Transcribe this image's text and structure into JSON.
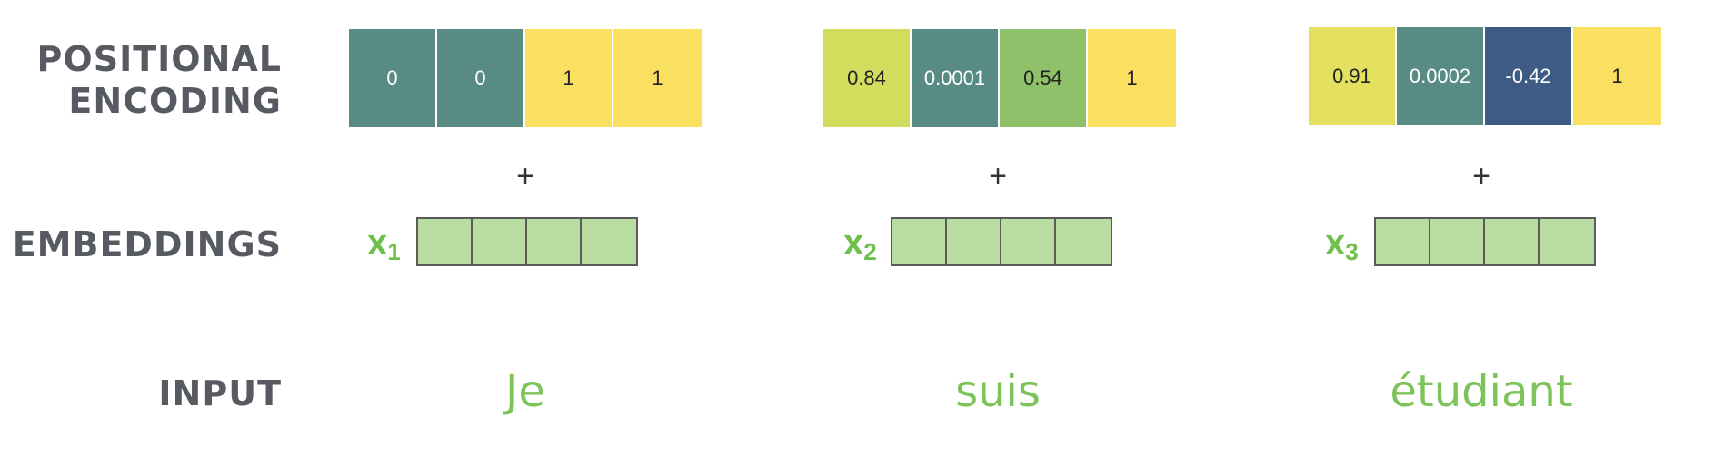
{
  "row_labels": {
    "positional_encoding": [
      "POSITIONAL",
      "ENCODING"
    ],
    "embeddings": "EMBEDDINGS",
    "input": "INPUT"
  },
  "plus_sign": "+",
  "columns": [
    {
      "pe": [
        {
          "value": "0",
          "color": "#578b84",
          "text_color": "#ffffff"
        },
        {
          "value": "0",
          "color": "#578b84",
          "text_color": "#ffffff"
        },
        {
          "value": "1",
          "color": "#f9e061",
          "text_color": "#222222"
        },
        {
          "value": "1",
          "color": "#f9e061",
          "text_color": "#222222"
        }
      ],
      "x_label": "x",
      "x_subscript": "1",
      "word": "Je"
    },
    {
      "pe": [
        {
          "value": "0.84",
          "color": "#d3dd5d",
          "text_color": "#222222"
        },
        {
          "value": "0.0001",
          "color": "#578b84",
          "text_color": "#ffffff"
        },
        {
          "value": "0.54",
          "color": "#8fc16a",
          "text_color": "#222222"
        },
        {
          "value": "1",
          "color": "#f9e061",
          "text_color": "#222222"
        }
      ],
      "x_label": "x",
      "x_subscript": "2",
      "word": "suis"
    },
    {
      "pe": [
        {
          "value": "0.91",
          "color": "#e2e05e",
          "text_color": "#222222"
        },
        {
          "value": "0.0002",
          "color": "#578b84",
          "text_color": "#ffffff"
        },
        {
          "value": "-0.42",
          "color": "#3e5b85",
          "text_color": "#ffffff"
        },
        {
          "value": "1",
          "color": "#f9e061",
          "text_color": "#222222"
        }
      ],
      "x_label": "x",
      "x_subscript": "3",
      "word": "étudiant"
    }
  ],
  "colors": {
    "label_gray": "#575b61",
    "word_green": "#7cc35a",
    "embedding_fill": "#b8dca2"
  }
}
